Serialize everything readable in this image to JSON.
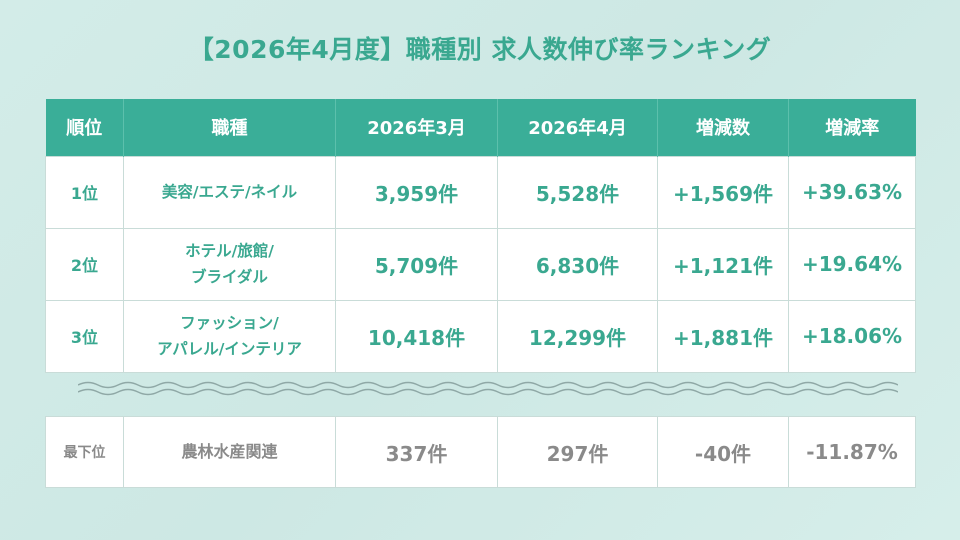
{
  "title": "【2026年4月度】職種別 求人数伸び率ランキング",
  "headers": [
    "順位",
    "職種",
    "2026年3月",
    "2026年4月",
    "増減数",
    "増減率"
  ],
  "rows": [
    {
      "rank": "1位",
      "job_line1": "美容/エステ/ネイル",
      "job_line2": "",
      "mar": "3,959件",
      "apr": "5,528件",
      "diff": "+1,569件",
      "rate": "+39.63%"
    },
    {
      "rank": "2位",
      "job_line1": "ホテル/旅館/",
      "job_line2": "ブライダル",
      "mar": "5,709件",
      "apr": "6,830件",
      "diff": "+1,121件",
      "rate": "+19.64%"
    },
    {
      "rank": "3位",
      "job_line1": "ファッション/",
      "job_line2": "アパレル/インテリア",
      "mar": "10,418件",
      "apr": "12,299件",
      "diff": "+1,881件",
      "rate": "+18.06%"
    }
  ],
  "bottom": {
    "rank": "最下位",
    "job": "農林水産関連",
    "mar": "337件",
    "apr": "297件",
    "diff": "-40件",
    "rate": "-11.87%"
  },
  "colors": {
    "accent": "#3aae98",
    "title": "#3aa890",
    "muted": "#8a8a8a"
  },
  "decor": {
    "separator": "wave-separator"
  }
}
